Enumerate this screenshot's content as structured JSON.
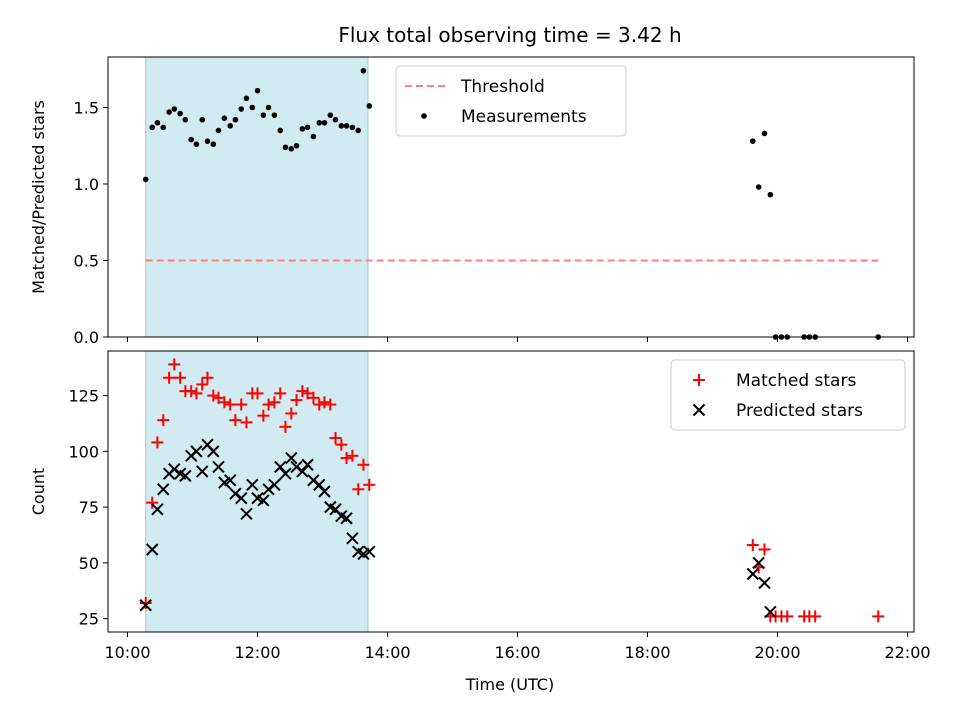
{
  "chart_data": {
    "title": "Flux total observing time = 3.42 h",
    "colors": {
      "threshold": "#ff7f7f",
      "measurements": "#000000",
      "matched": "#ff0000",
      "predicted": "#000000",
      "highlight": "#add8e6"
    },
    "highlight_range_h": [
      10.28,
      13.7
    ],
    "x_axis": {
      "label": "Time (UTC)",
      "range_h": [
        9.7,
        22.1
      ],
      "ticks_h": [
        10,
        12,
        14,
        16,
        18,
        20,
        22
      ],
      "tick_labels": [
        "10:00",
        "12:00",
        "14:00",
        "16:00",
        "18:00",
        "20:00",
        "22:00"
      ]
    },
    "panels": [
      {
        "type": "scatter",
        "ylabel": "Matched/Predicted stars",
        "ylim": [
          0,
          1.83
        ],
        "yticks": [
          0.0,
          0.5,
          1.0,
          1.5
        ],
        "ytick_labels": [
          "0.0",
          "0.5",
          "1.0",
          "1.5"
        ],
        "legend_position": "top-center",
        "threshold": {
          "name": "Threshold",
          "y": 0.5,
          "x_range_h": [
            10.28,
            21.55
          ]
        },
        "series": [
          {
            "name": "Measurements",
            "marker": "dot",
            "x": [
              10.28,
              10.38,
              10.46,
              10.55,
              10.64,
              10.72,
              10.81,
              10.89,
              10.98,
              11.06,
              11.15,
              11.23,
              11.32,
              11.4,
              11.49,
              11.58,
              11.66,
              11.75,
              11.83,
              11.92,
              12.0,
              12.09,
              12.17,
              12.26,
              12.35,
              12.43,
              12.52,
              12.6,
              12.69,
              12.77,
              12.86,
              12.95,
              13.03,
              13.12,
              13.2,
              13.29,
              13.37,
              13.46,
              13.55,
              13.63,
              13.72,
              19.62,
              19.71,
              19.8,
              19.89,
              19.97,
              20.06,
              20.15,
              20.41,
              20.49,
              20.58,
              21.55
            ],
            "y": [
              1.03,
              1.37,
              1.4,
              1.37,
              1.47,
              1.49,
              1.46,
              1.42,
              1.29,
              1.26,
              1.42,
              1.28,
              1.26,
              1.35,
              1.43,
              1.38,
              1.42,
              1.49,
              1.56,
              1.5,
              1.61,
              1.45,
              1.5,
              1.45,
              1.35,
              1.24,
              1.23,
              1.25,
              1.36,
              1.37,
              1.31,
              1.4,
              1.4,
              1.45,
              1.42,
              1.38,
              1.38,
              1.37,
              1.35,
              1.74,
              1.51,
              1.28,
              0.98,
              1.33,
              0.93,
              0.0,
              0.0,
              0.0,
              0.0,
              0.0,
              0.0,
              0.0
            ]
          }
        ]
      },
      {
        "type": "scatter",
        "ylabel": "Count",
        "ylim": [
          19,
          145
        ],
        "yticks": [
          25,
          50,
          75,
          100,
          125
        ],
        "ytick_labels": [
          "25",
          "50",
          "75",
          "100",
          "125"
        ],
        "legend_position": "top-right",
        "series": [
          {
            "name": "Matched stars",
            "marker": "plus",
            "x": [
              10.28,
              10.38,
              10.46,
              10.55,
              10.64,
              10.72,
              10.81,
              10.89,
              10.98,
              11.06,
              11.15,
              11.23,
              11.32,
              11.4,
              11.49,
              11.58,
              11.66,
              11.75,
              11.83,
              11.92,
              12.0,
              12.09,
              12.17,
              12.26,
              12.35,
              12.43,
              12.52,
              12.6,
              12.69,
              12.77,
              12.86,
              12.95,
              13.03,
              13.12,
              13.2,
              13.29,
              13.37,
              13.46,
              13.55,
              13.63,
              13.72,
              19.62,
              19.71,
              19.8,
              19.89,
              19.97,
              20.06,
              20.15,
              20.41,
              20.49,
              20.58,
              21.55
            ],
            "y": [
              32,
              77,
              104,
              114,
              133,
              139,
              133,
              127,
              127,
              126,
              130,
              133,
              125,
              124,
              122,
              121,
              114,
              121,
              113,
              126,
              126,
              116,
              121,
              122,
              126,
              111,
              117,
              123,
              127,
              126,
              124,
              121,
              122,
              121,
              106,
              103,
              97,
              98,
              83,
              94,
              85,
              58,
              48,
              56,
              26,
              26,
              26,
              26,
              26,
              26,
              26,
              26
            ]
          },
          {
            "name": "Predicted stars",
            "marker": "x",
            "x": [
              10.28,
              10.38,
              10.46,
              10.55,
              10.64,
              10.72,
              10.81,
              10.89,
              10.98,
              11.06,
              11.15,
              11.23,
              11.32,
              11.4,
              11.49,
              11.58,
              11.66,
              11.75,
              11.83,
              11.92,
              12.0,
              12.09,
              12.17,
              12.26,
              12.35,
              12.43,
              12.52,
              12.6,
              12.69,
              12.77,
              12.86,
              12.95,
              13.03,
              13.12,
              13.2,
              13.29,
              13.37,
              13.46,
              13.55,
              13.63,
              13.72,
              19.62,
              19.71,
              19.8,
              19.89
            ],
            "y": [
              31,
              56,
              74,
              83,
              90,
              92,
              90,
              89,
              98,
              100,
              91,
              103,
              100,
              93,
              86,
              87,
              81,
              79,
              72,
              85,
              79,
              78,
              83,
              85,
              93,
              90,
              97,
              93,
              91,
              94,
              87,
              85,
              82,
              75,
              74,
              71,
              70,
              61,
              55,
              54,
              55,
              45,
              50,
              41,
              28
            ]
          }
        ]
      }
    ]
  }
}
